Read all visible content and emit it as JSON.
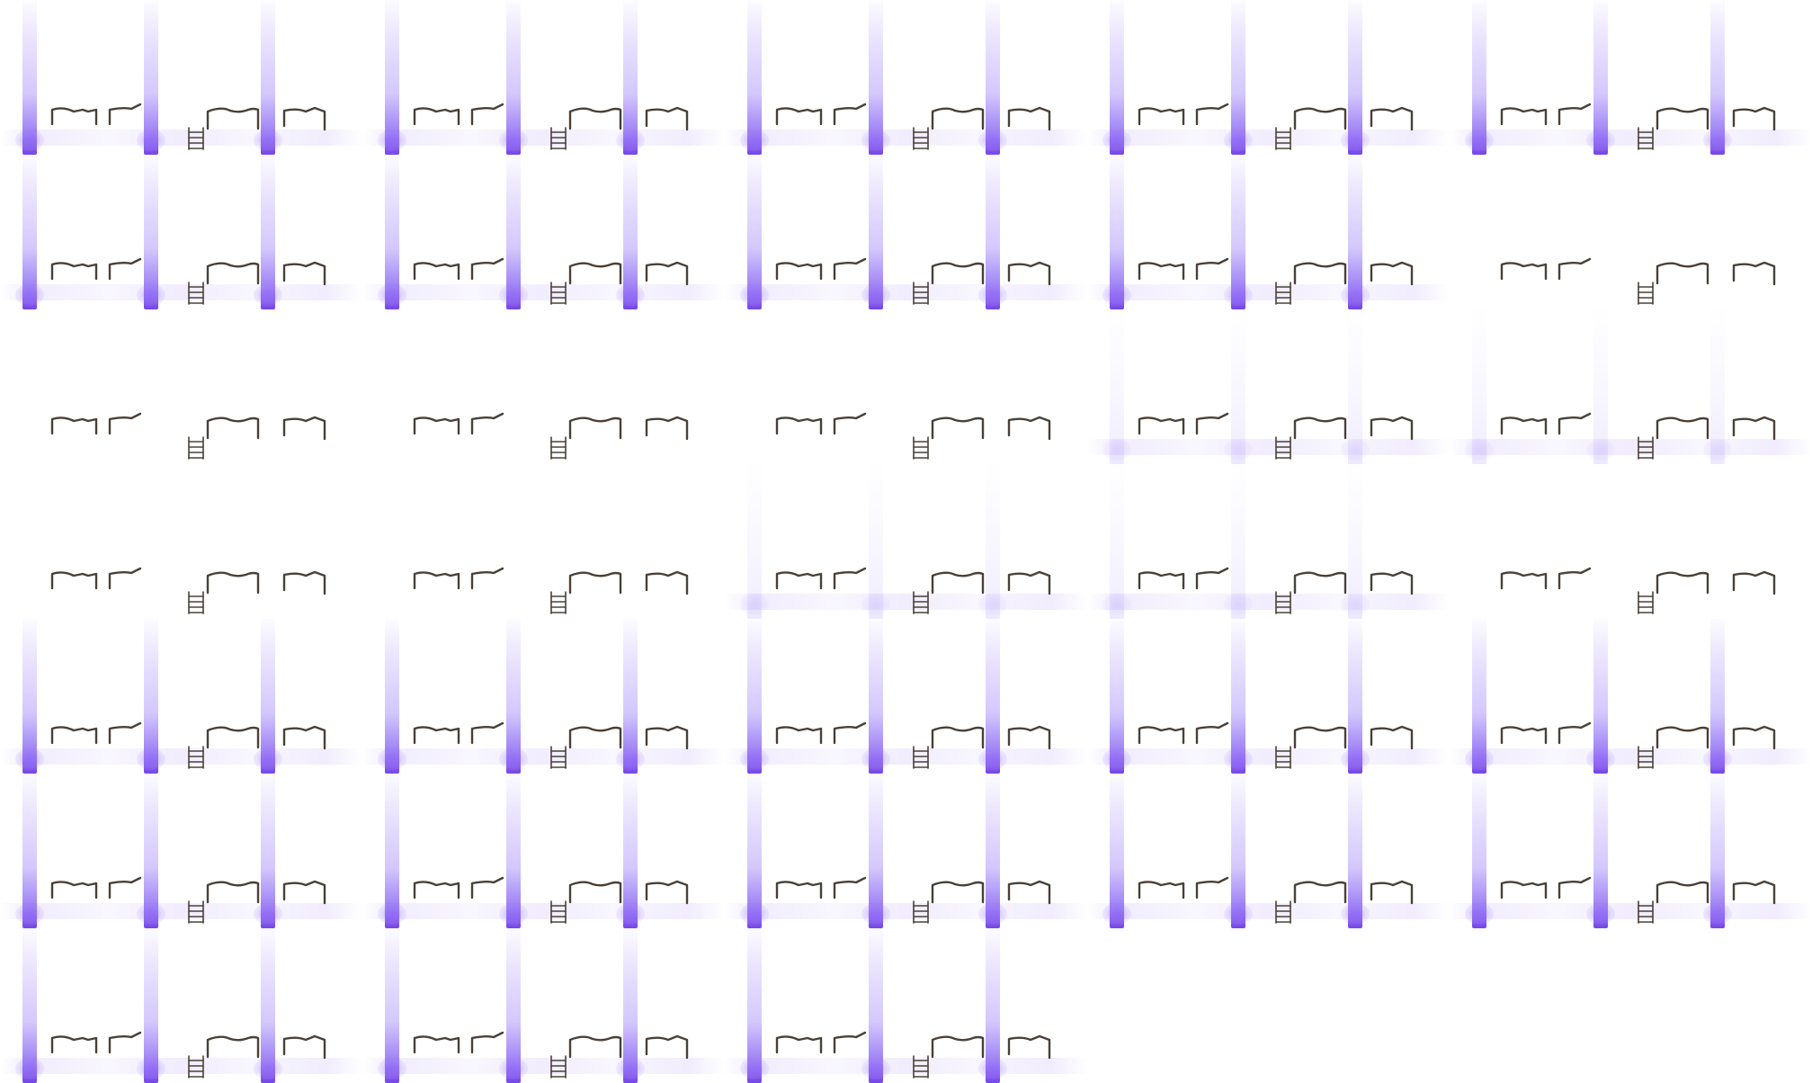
{
  "sprite_sheet": {
    "columns": 5,
    "rows": 7,
    "frame_count": 33,
    "effect": {
      "name": "light-pillar",
      "color": "#9a7af5",
      "core_color": "#7a48e8"
    },
    "props": {
      "color": "#4a4038",
      "items": [
        "short-barrier-icon",
        "ramp-barrier-icon",
        "ladder-icon",
        "wavy-barrier-icon",
        "hook-barrier-icon"
      ]
    },
    "frames": [
      {
        "index": 1,
        "beams": "strong"
      },
      {
        "index": 2,
        "beams": "strong"
      },
      {
        "index": 3,
        "beams": "strong"
      },
      {
        "index": 4,
        "beams": "strong"
      },
      {
        "index": 5,
        "beams": "strong"
      },
      {
        "index": 6,
        "beams": "strong"
      },
      {
        "index": 7,
        "beams": "strong"
      },
      {
        "index": 8,
        "beams": "strong"
      },
      {
        "index": 9,
        "beams": "strong"
      },
      {
        "index": 10,
        "beams": "none"
      },
      {
        "index": 11,
        "beams": "none"
      },
      {
        "index": 12,
        "beams": "none"
      },
      {
        "index": 13,
        "beams": "none"
      },
      {
        "index": 14,
        "beams": "faint"
      },
      {
        "index": 15,
        "beams": "faint"
      },
      {
        "index": 16,
        "beams": "none"
      },
      {
        "index": 17,
        "beams": "none"
      },
      {
        "index": 18,
        "beams": "faint"
      },
      {
        "index": 19,
        "beams": "faint"
      },
      {
        "index": 20,
        "beams": "none"
      },
      {
        "index": 21,
        "beams": "strong"
      },
      {
        "index": 22,
        "beams": "strong"
      },
      {
        "index": 23,
        "beams": "strong"
      },
      {
        "index": 24,
        "beams": "strong"
      },
      {
        "index": 25,
        "beams": "strong"
      },
      {
        "index": 26,
        "beams": "strong"
      },
      {
        "index": 27,
        "beams": "strong"
      },
      {
        "index": 28,
        "beams": "strong"
      },
      {
        "index": 29,
        "beams": "strong"
      },
      {
        "index": 30,
        "beams": "strong"
      },
      {
        "index": 31,
        "beams": "strong"
      },
      {
        "index": 32,
        "beams": "strong"
      },
      {
        "index": 33,
        "beams": "strong"
      }
    ]
  }
}
